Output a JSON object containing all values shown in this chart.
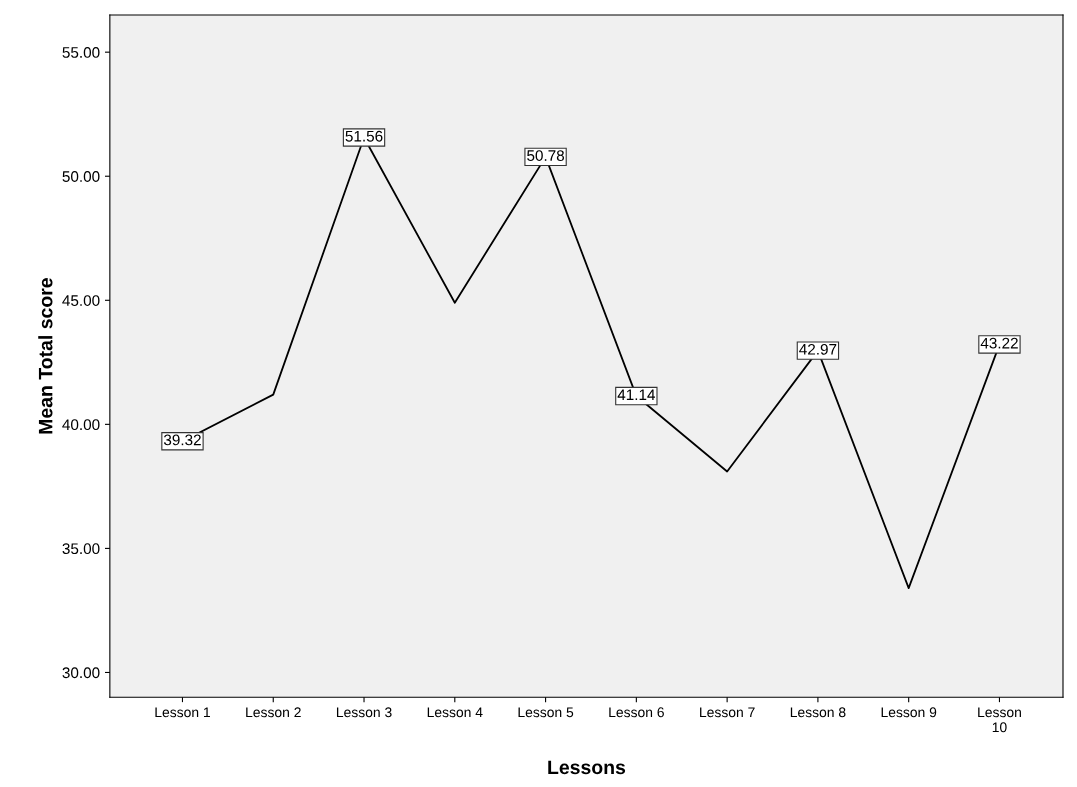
{
  "chart_data": {
    "type": "line",
    "xlabel": "Lessons",
    "ylabel": "Mean Total score",
    "categories": [
      "Lesson 1",
      "Lesson 2",
      "Lesson 3",
      "Lesson 4",
      "Lesson 5",
      "Lesson 6",
      "Lesson 7",
      "Lesson 8",
      "Lesson 9",
      "Lesson\n10"
    ],
    "series": [
      {
        "color": "#000000",
        "values": [
          39.32,
          41.2,
          51.56,
          44.9,
          50.78,
          41.14,
          38.1,
          42.97,
          33.4,
          43.22
        ],
        "value_labels": [
          "39.32",
          null,
          "51.56",
          null,
          "50.78",
          "41.14",
          null,
          "42.97",
          null,
          "43.22"
        ]
      }
    ],
    "ylim": [
      29,
      56.5
    ],
    "yticks": [
      {
        "value": 30,
        "label": "30.00"
      },
      {
        "value": 35,
        "label": "35.00"
      },
      {
        "value": 40,
        "label": "40.00"
      },
      {
        "value": 45,
        "label": "45.00"
      },
      {
        "value": 50,
        "label": "50.00"
      },
      {
        "value": 55,
        "label": "55.00"
      }
    ],
    "grid": false,
    "line_style": "solid"
  }
}
